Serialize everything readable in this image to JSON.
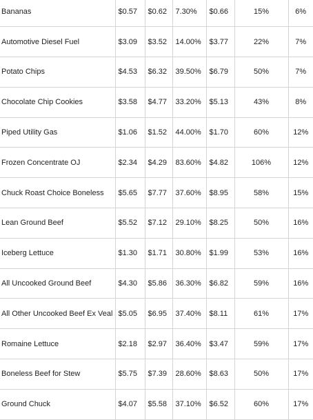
{
  "table": {
    "rows": [
      [
        "Bananas",
        "$0.57",
        "$0.62",
        "7.30%",
        "$0.66",
        "15%",
        "6%"
      ],
      [
        "Automotive Diesel Fuel",
        "$3.09",
        "$3.52",
        "14.00%",
        "$3.77",
        "22%",
        "7%"
      ],
      [
        "Potato Chips",
        "$4.53",
        "$6.32",
        "39.50%",
        "$6.79",
        "50%",
        "7%"
      ],
      [
        "Chocolate Chip Cookies",
        "$3.58",
        "$4.77",
        "33.20%",
        "$5.13",
        "43%",
        "8%"
      ],
      [
        "Piped Utility Gas",
        "$1.06",
        "$1.52",
        "44.00%",
        "$1.70",
        "60%",
        "12%"
      ],
      [
        "Frozen Concentrate OJ",
        "$2.34",
        "$4.29",
        "83.60%",
        "$4.82",
        "106%",
        "12%"
      ],
      [
        "Chuck Roast Choice Boneless",
        "$5.65",
        "$7.77",
        "37.60%",
        "$8.95",
        "58%",
        "15%"
      ],
      [
        "Lean Ground Beef",
        "$5.52",
        "$7.12",
        "29.10%",
        "$8.25",
        "50%",
        "16%"
      ],
      [
        "Iceberg Lettuce",
        "$1.30",
        "$1.71",
        "30.80%",
        "$1.99",
        "53%",
        "16%"
      ],
      [
        "All Uncooked Ground Beef",
        "$4.30",
        "$5.86",
        "36.30%",
        "$6.82",
        "59%",
        "16%"
      ],
      [
        "All Other Uncooked Beef Ex Veal",
        "$5.05",
        "$6.95",
        "37.40%",
        "$8.11",
        "61%",
        "17%"
      ],
      [
        "Romaine Lettuce",
        "$2.18",
        "$2.97",
        "36.40%",
        "$3.47",
        "59%",
        "17%"
      ],
      [
        "Boneless Beef for Stew",
        "$5.75",
        "$7.39",
        "28.60%",
        "$8.63",
        "50%",
        "17%"
      ],
      [
        "Ground Chuck",
        "$4.07",
        "$5.58",
        "37.10%",
        "$6.52",
        "60%",
        "17%"
      ]
    ]
  }
}
